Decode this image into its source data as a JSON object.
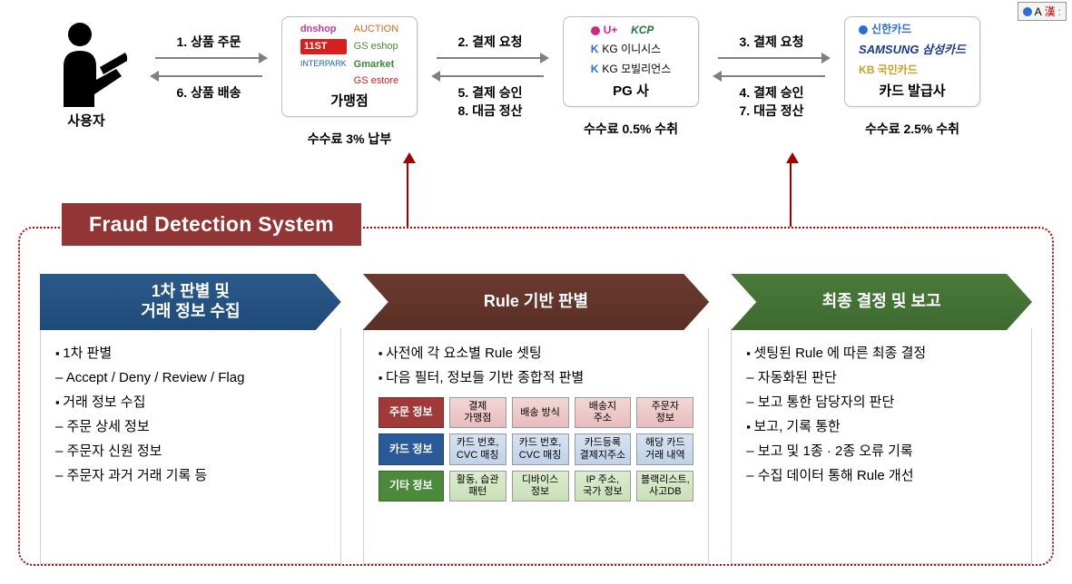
{
  "flow": {
    "user_label": "사용자",
    "merchant_label": "가맹점",
    "merchant_fee": "수수료 3% 납부",
    "pg_label": "PG 사",
    "pg_fee": "수수료 0.5% 수취",
    "issuer_label": "카드 발급사",
    "issuer_fee": "수수료 2.5% 수취",
    "arrows": {
      "a1_top": "1. 상품 주문",
      "a1_bot": "6. 상품 배송",
      "a2_top": "2. 결제 요청",
      "a2_bot_1": "5. 결제 승인",
      "a2_bot_2": "8. 대금 정산",
      "a3_top": "3. 결제 요청",
      "a3_bot_1": "4. 결제 승인",
      "a3_bot_2": "7. 대금 정산"
    },
    "merchant_logos": [
      "dnshop",
      "AUCTION",
      "11ST",
      "GS eshop",
      "INTERPARK",
      "Gmarket",
      "GS estore"
    ],
    "pg_logos": [
      "U+",
      "KCP",
      "KG 이니시스",
      "KG 모빌리언스"
    ],
    "issuer_logos": [
      "신한카드",
      "SAMSUNG 삼성카드",
      "KB 국민카드"
    ]
  },
  "ime": {
    "a": "A",
    "han": "漢"
  },
  "fds": {
    "title": "Fraud Detection System",
    "stage1": {
      "title_l1": "1차 판별 및",
      "title_l2": "거래 정보 수집",
      "items": [
        {
          "t": "bullet",
          "v": "1차 판별"
        },
        {
          "t": "dash",
          "v": "Accept / Deny / Review / Flag"
        },
        {
          "t": "bullet",
          "v": "거래 정보 수집"
        },
        {
          "t": "dash",
          "v": "주문 상세 정보"
        },
        {
          "t": "dash",
          "v": "주문자 신원 정보"
        },
        {
          "t": "dash",
          "v": "주문자 과거 거래 기록 등"
        }
      ]
    },
    "stage2": {
      "title": "Rule 기반 판별",
      "intro": [
        {
          "t": "bullet",
          "v": "사전에 각 요소별 Rule 셋팅"
        },
        {
          "t": "bullet",
          "v": "다음 필터, 정보들 기반 종합적 판별"
        }
      ],
      "rows": [
        {
          "tag": "주문 정보",
          "tag_color": "tag-red",
          "cell_color": "cell-pink",
          "cells": [
            "결제\n가맹점",
            "배송 방식",
            "배송지\n주소",
            "주문자\n정보"
          ]
        },
        {
          "tag": "카드 정보",
          "tag_color": "tag-blue",
          "cell_color": "cell-blue",
          "cells": [
            "카드 번호,\nCVC 매칭",
            "카드 번호,\nCVC 매칭",
            "카드등록\n결제지주소",
            "해당 카드\n거래 내역"
          ]
        },
        {
          "tag": "기타 정보",
          "tag_color": "tag-green",
          "cell_color": "cell-green",
          "cells": [
            "활동, 습관\n패턴",
            "디바이스\n정보",
            "IP 주소,\n국가 정보",
            "블랙리스트,\n사고DB"
          ]
        }
      ]
    },
    "stage3": {
      "title": "최종 결정 및 보고",
      "items": [
        {
          "t": "bullet",
          "v": "셋팅된 Rule 에 따른 최종 결정"
        },
        {
          "t": "dash",
          "v": "자동화된 판단"
        },
        {
          "t": "dash",
          "v": "보고 통한 담당자의 판단"
        },
        {
          "t": "bullet",
          "v": "보고, 기록 통한"
        },
        {
          "t": "dash",
          "v": "보고 및 1종 · 2종 오류 기록"
        },
        {
          "t": "dash",
          "v": "수집 데이터 통해 Rule 개선"
        }
      ]
    }
  },
  "colors": {
    "fds_border": "#c00000",
    "fds_title_bg": "#923535",
    "stage_blue": "#1f4a78",
    "stage_brown": "#5a2f26",
    "stage_green": "#3e6a30",
    "arrow_gray": "#7f7f7f",
    "arrow_red": "#a00000"
  }
}
